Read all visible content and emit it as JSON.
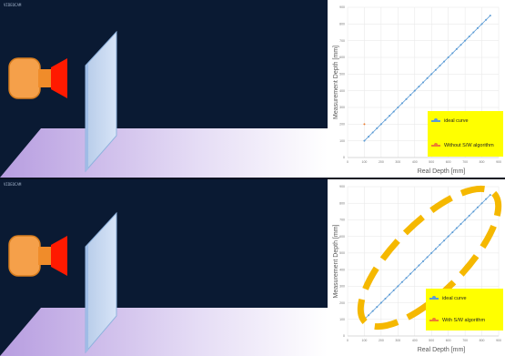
{
  "panels": [
    {
      "scene_tag": "VIDEOCAM",
      "legend": [
        {
          "label": "ideal curve",
          "color": "#5b9bd5"
        },
        {
          "label": "Without S/W algorithm",
          "color": "#ed7d31"
        }
      ]
    },
    {
      "scene_tag": "VIDEOCAM",
      "legend": [
        {
          "label": "ideal curve",
          "color": "#5b9bd5"
        },
        {
          "label": "With S/W algorithm",
          "color": "#ed7d31"
        }
      ]
    }
  ],
  "colors": {
    "background": "#0a1a33",
    "floor": "#c9b8f0",
    "wall": "#c9dcf5",
    "camera": "#f5a04a",
    "camera_lens": "#ff0000",
    "ideal": "#5b9bd5",
    "measured": "#ed7d31",
    "highlight": "#f5b800",
    "legend_bg": "#ffff00"
  },
  "chart_data": [
    {
      "type": "line",
      "title": "",
      "xlabel": "Real Depth [mm]",
      "ylabel": "Measurement Depth [mm]",
      "xlim": [
        0,
        900
      ],
      "ylim": [
        0,
        900
      ],
      "x_ticks": [
        "0",
        "100",
        "200",
        "300",
        "400",
        "500",
        "600",
        "700",
        "800",
        "900"
      ],
      "y_ticks": [
        "0",
        "100",
        "200",
        "300",
        "400",
        "500",
        "600",
        "700",
        "800",
        "900"
      ],
      "grid": true,
      "legend_position": "bottom-right",
      "series": [
        {
          "name": "ideal curve",
          "x": [
            100,
            125,
            150,
            175,
            200,
            225,
            250,
            275,
            300,
            325,
            350,
            375,
            400,
            425,
            450,
            475,
            500,
            525,
            550,
            575,
            600,
            625,
            650,
            675,
            700,
            725,
            750,
            775,
            800,
            825,
            850
          ],
          "y": [
            100,
            125,
            150,
            175,
            200,
            225,
            250,
            275,
            300,
            325,
            350,
            375,
            400,
            425,
            450,
            475,
            500,
            525,
            550,
            575,
            600,
            625,
            650,
            675,
            700,
            725,
            750,
            775,
            800,
            825,
            850
          ]
        },
        {
          "name": "Without S/W algorithm",
          "x": [
            100
          ],
          "y": [
            200
          ]
        }
      ]
    },
    {
      "type": "line",
      "title": "",
      "xlabel": "Real Depth [mm]",
      "ylabel": "Measurement Depth [mm]",
      "xlim": [
        0,
        900
      ],
      "ylim": [
        0,
        900
      ],
      "x_ticks": [
        "0",
        "100",
        "200",
        "300",
        "400",
        "500",
        "600",
        "700",
        "800",
        "900"
      ],
      "y_ticks": [
        "0",
        "100",
        "200",
        "300",
        "400",
        "500",
        "600",
        "700",
        "800",
        "900"
      ],
      "grid": true,
      "legend_position": "bottom-right",
      "highlight": "dashed ellipse along the diagonal",
      "series": [
        {
          "name": "ideal curve",
          "x": [
            100,
            125,
            150,
            175,
            200,
            225,
            250,
            275,
            300,
            325,
            350,
            375,
            400,
            425,
            450,
            475,
            500,
            525,
            550,
            575,
            600,
            625,
            650,
            675,
            700,
            725,
            750,
            775,
            800,
            825,
            850
          ],
          "y": [
            100,
            125,
            150,
            175,
            200,
            225,
            250,
            275,
            300,
            325,
            350,
            375,
            400,
            425,
            450,
            475,
            500,
            525,
            550,
            575,
            600,
            625,
            650,
            675,
            700,
            725,
            750,
            775,
            800,
            825,
            850
          ]
        },
        {
          "name": "With S/W algorithm",
          "x": [
            100
          ],
          "y": [
            100
          ]
        }
      ]
    }
  ]
}
